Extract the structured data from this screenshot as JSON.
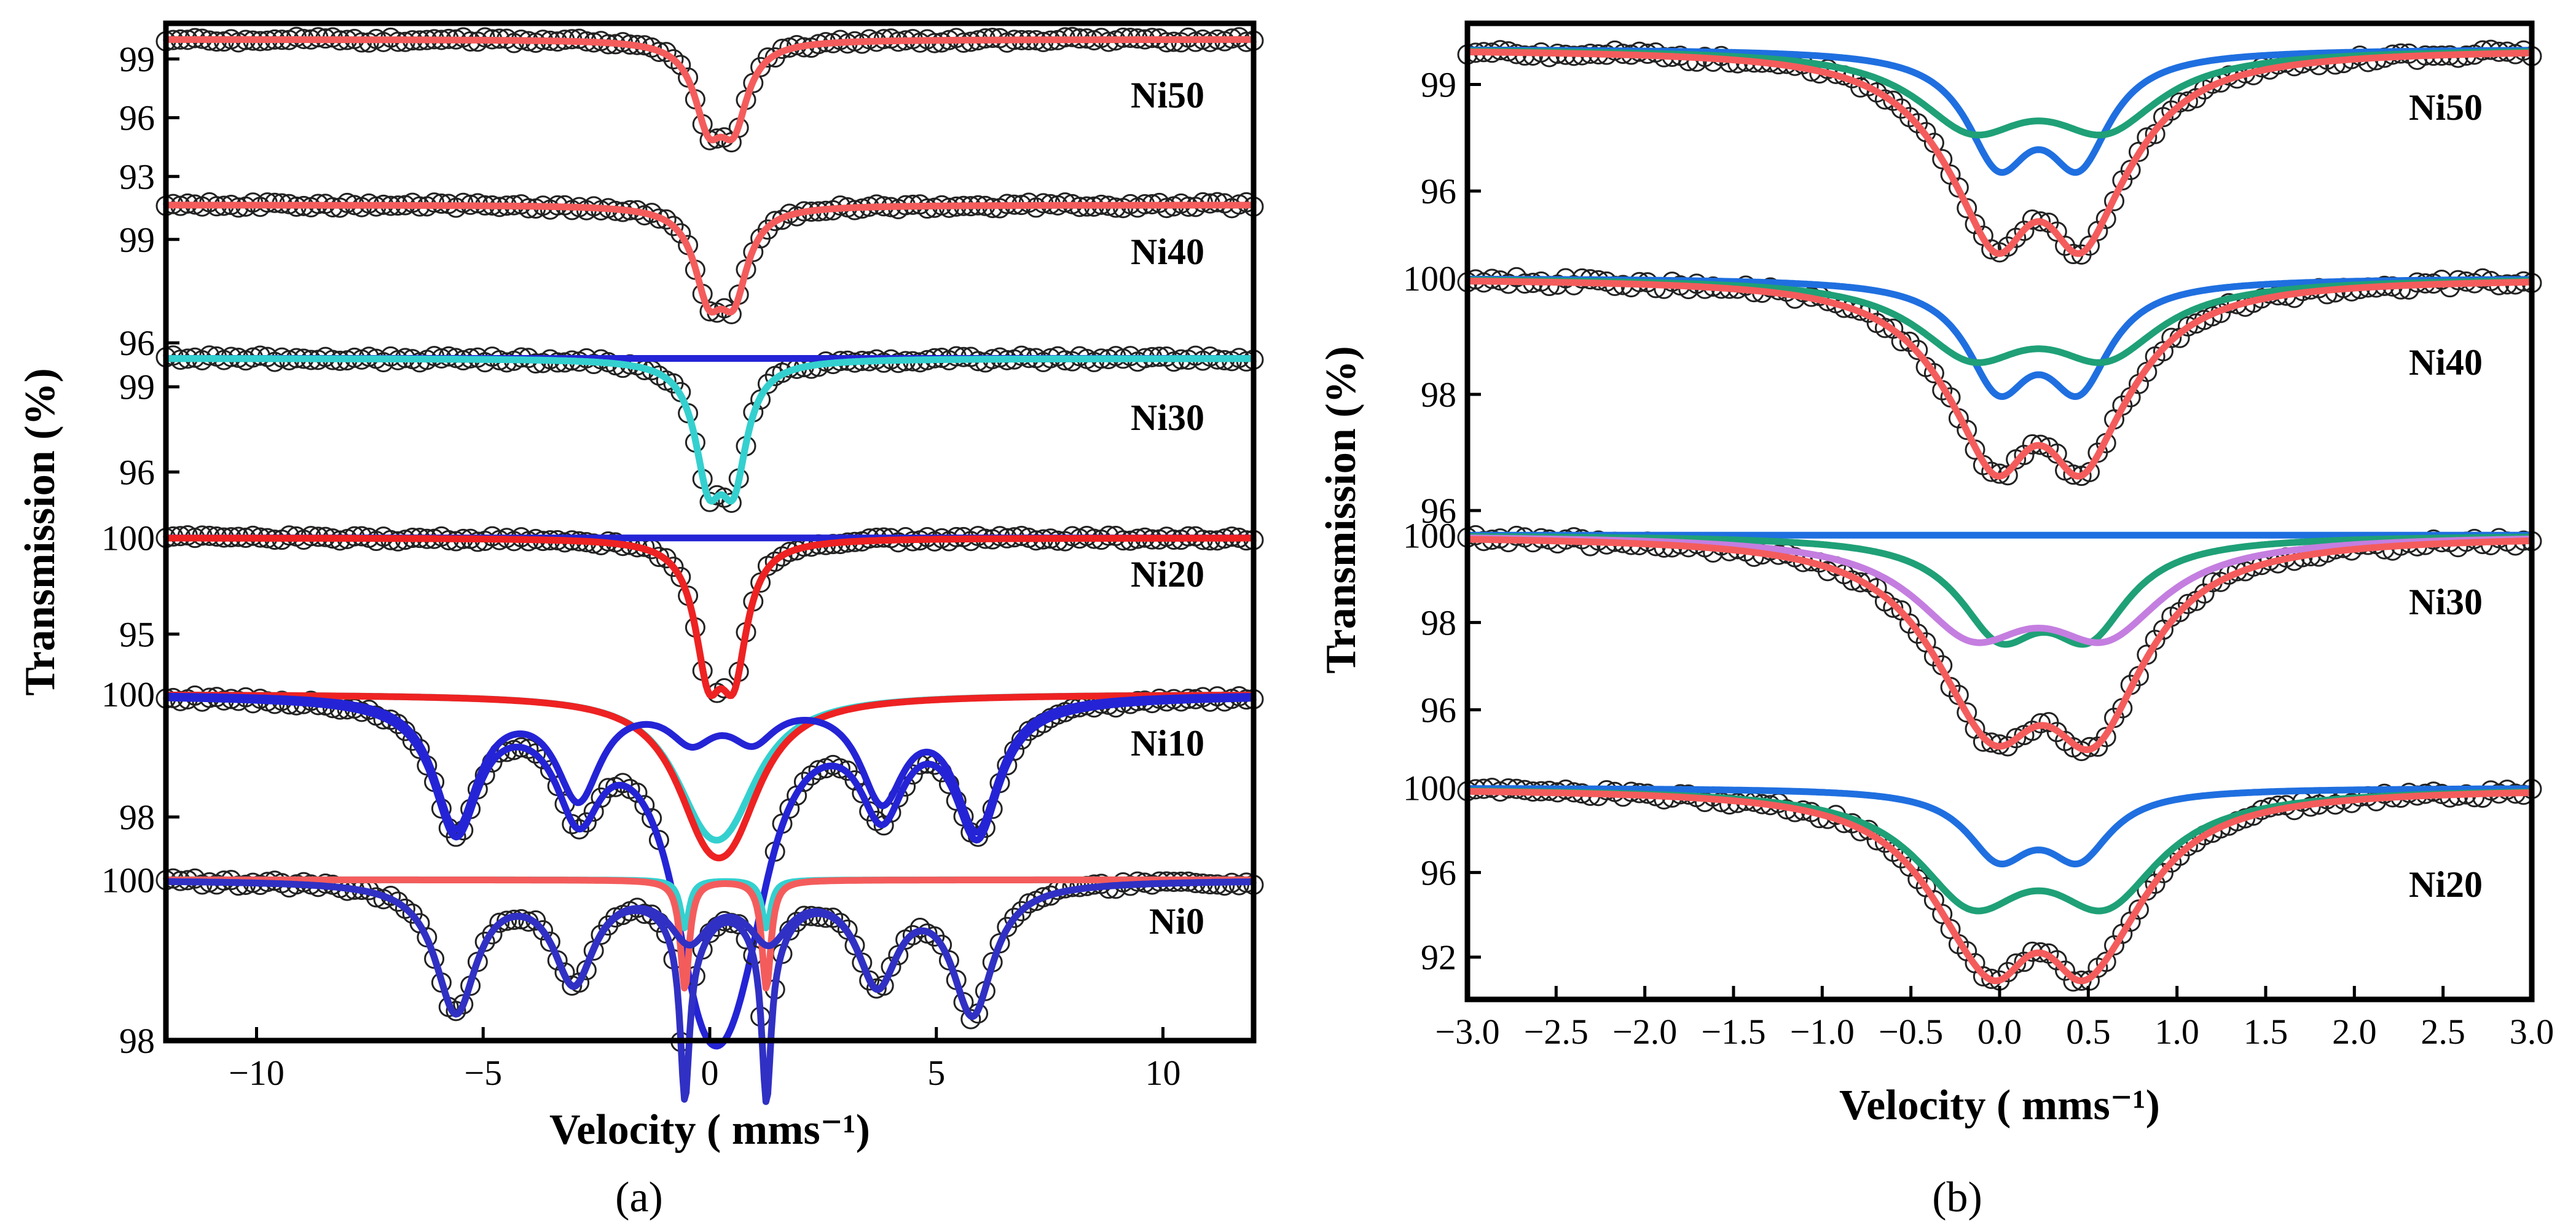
{
  "figure": {
    "panel_labels": [
      "(a)",
      "(b)"
    ]
  },
  "chart_data": [
    {
      "id": "a",
      "type": "line",
      "title": "",
      "label": "(a)",
      "xlabel": "Velocity ( mms⁻¹)",
      "ylabel": "Transmission (%)",
      "xlim": [
        -12,
        12
      ],
      "x_ticks": [
        -10,
        -5,
        0,
        5,
        10
      ],
      "x_tick_labels": [
        "−10",
        "−5",
        "0",
        "5",
        "10"
      ],
      "grid": false,
      "colors": {
        "red": "#f45c5c",
        "blue": "#2424d6",
        "cyan": "#34d0cf",
        "indigo": "#3030c4",
        "deep_red": "#ee2222",
        "marker": "#222222"
      },
      "strips": [
        {
          "name": "Ni50",
          "ylim": [
            92.6,
            100.6
          ],
          "yticks": [
            99,
            96,
            93
          ],
          "components": [
            {
              "color": "red",
              "type": "doublet",
              "center": 0.25,
              "split": 0.55,
              "width": 0.38,
              "depth": 3.8
            }
          ],
          "fit": "red"
        },
        {
          "name": "Ni40",
          "ylim": [
            95.7,
            100.6
          ],
          "yticks": [
            99,
            96
          ],
          "components": [
            {
              "color": "red",
              "type": "doublet",
              "center": 0.25,
              "split": 0.55,
              "width": 0.38,
              "depth": 2.3
            }
          ],
          "fit": "red"
        },
        {
          "name": "Ni30",
          "ylim": [
            93.8,
            100.4
          ],
          "yticks": [
            99,
            96
          ],
          "components": [
            {
              "color": "blue",
              "type": "flat",
              "depth": 0
            },
            {
              "color": "cyan",
              "type": "doublet",
              "center": 0.25,
              "split": 0.55,
              "width": 0.36,
              "depth": 3.8
            }
          ],
          "fit": "cyan"
        },
        {
          "name": "Ni20",
          "ylim": [
            92.2,
            100.5
          ],
          "yticks": [
            100,
            95
          ],
          "components": [
            {
              "color": "blue",
              "type": "flat",
              "depth": 0
            },
            {
              "color": "deep_red",
              "type": "doublet",
              "center": 0.25,
              "split": 0.55,
              "width": 0.36,
              "depth": 6.2
            }
          ],
          "fit": "deep_red"
        },
        {
          "name": "Ni10",
          "ylim": [
            97.4,
            100.2
          ],
          "yticks": [
            100,
            98
          ],
          "components": [
            {
              "color": "cyan",
              "type": "doublet",
              "center": 0.15,
              "split": 0.55,
              "width": 0.9,
              "depth": 1.3
            },
            {
              "color": "deep_red",
              "type": "doublet",
              "center": 0.2,
              "split": 0.6,
              "width": 0.85,
              "depth": 1.5
            },
            {
              "color": "blue",
              "type": "sextet",
              "positions": [
                -5.6,
                -2.9,
                -0.4,
                0.95,
                3.8,
                5.9
              ],
              "depths": [
                2.1,
                1.6,
                0.6,
                0.6,
                1.6,
                2.1
              ],
              "width": 0.6
            }
          ],
          "fit": "blue"
        },
        {
          "name": "Ni0",
          "ylim": [
            98.0,
            100.4
          ],
          "yticks": [
            100,
            98
          ],
          "components": [
            {
              "color": "cyan",
              "type": "doublet",
              "center": 0.35,
              "split": 1.8,
              "width": 0.12,
              "depth": 0.6
            },
            {
              "color": "red",
              "type": "doublet",
              "center": 0.35,
              "split": 1.8,
              "width": 0.12,
              "depth": 1.35
            },
            {
              "color": "indigo",
              "type": "sextet",
              "positions": [
                -5.6,
                -3.0,
                -0.45,
                1.3,
                3.7,
                5.8
              ],
              "depths": [
                1.6,
                1.2,
                0.65,
                0.65,
                1.2,
                1.6
              ],
              "width": 0.55
            }
          ],
          "fit": "indigo"
        }
      ]
    },
    {
      "id": "b",
      "type": "line",
      "title": "",
      "label": "(b)",
      "xlabel": "Velocity ( mms⁻¹)",
      "ylabel": "Transmission (%)",
      "xlim": [
        -3.0,
        3.0
      ],
      "x_ticks": [
        -3.0,
        -2.5,
        -2.0,
        -1.5,
        -1.0,
        -0.5,
        0.0,
        0.5,
        1.0,
        1.5,
        2.0,
        2.5,
        3.0
      ],
      "x_tick_labels": [
        "−3.0",
        "−2.5",
        "−2.0",
        "−1.5",
        "−1.0",
        "−0.5",
        "0.0",
        "0.5",
        "1.0",
        "1.5",
        "2.0",
        "2.5",
        "3.0"
      ],
      "grid": false,
      "colors": {
        "red": "#f45c5c",
        "blue": "#1f6fe0",
        "green": "#1fa077",
        "violet": "#c47ee0",
        "marker": "#222222"
      },
      "strips": [
        {
          "name": "Ni50",
          "ylim": [
            94.2,
            100.6
          ],
          "yticks": [
            99,
            96
          ],
          "components": [
            {
              "color": "blue",
              "type": "doublet",
              "center": 0.22,
              "split": 0.45,
              "width": 0.22,
              "depth": 2.9
            },
            {
              "color": "green",
              "type": "doublet",
              "center": 0.22,
              "split": 0.75,
              "width": 0.38,
              "depth": 2.0
            }
          ],
          "fit": "red"
        },
        {
          "name": "Ni40",
          "ylim": [
            95.8,
            100.4
          ],
          "yticks": [
            100,
            98,
            96
          ],
          "components": [
            {
              "color": "blue",
              "type": "doublet",
              "center": 0.22,
              "split": 0.45,
              "width": 0.22,
              "depth": 1.7
            },
            {
              "color": "green",
              "type": "doublet",
              "center": 0.22,
              "split": 0.75,
              "width": 0.38,
              "depth": 1.2
            }
          ],
          "fit": "red"
        },
        {
          "name": "Ni30",
          "ylim": [
            94.5,
            100.3
          ],
          "yticks": [
            100,
            98,
            96
          ],
          "components": [
            {
              "color": "blue",
              "type": "flat",
              "depth": 0
            },
            {
              "color": "green",
              "type": "doublet",
              "center": 0.25,
              "split": 0.5,
              "width": 0.28,
              "depth": 2.0
            },
            {
              "color": "violet",
              "type": "doublet",
              "center": 0.22,
              "split": 0.75,
              "width": 0.4,
              "depth": 2.0
            }
          ],
          "fit": "red"
        },
        {
          "name": "Ni20",
          "ylim": [
            90.0,
            100.6
          ],
          "yticks": [
            100,
            96,
            92
          ],
          "components": [
            {
              "color": "blue",
              "type": "doublet",
              "center": 0.22,
              "split": 0.45,
              "width": 0.22,
              "depth": 3.0
            },
            {
              "color": "green",
              "type": "doublet",
              "center": 0.22,
              "split": 0.75,
              "width": 0.38,
              "depth": 4.8
            }
          ],
          "fit": "red"
        }
      ]
    }
  ]
}
